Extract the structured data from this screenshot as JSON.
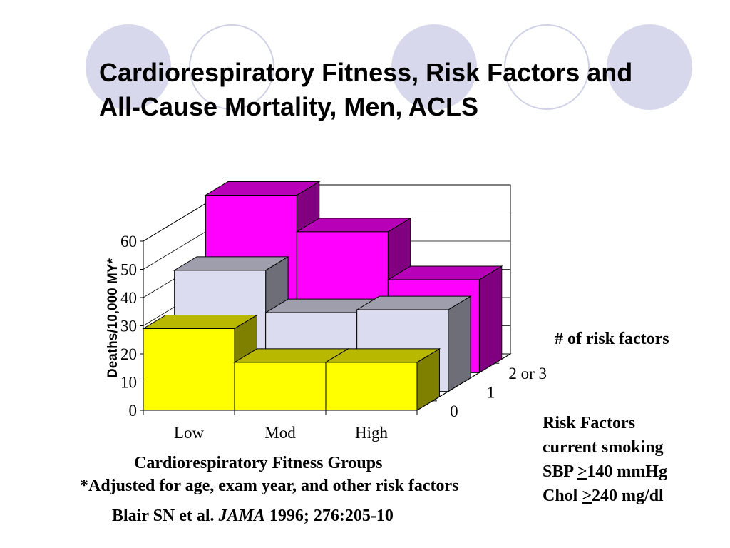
{
  "decor": {
    "circle_fill": "#d8d8ec",
    "circle_outline": "#d0d0e6"
  },
  "title": {
    "line1": "Cardiorespiratory Fitness, Risk Factors and",
    "line2": "All-Cause Mortality, Men, ACLS"
  },
  "footnote": "*Adjusted for age, exam year, and other risk factors",
  "citation": {
    "authors": "Blair SN et al. ",
    "journal": "JAMA",
    "ref": " 1996; 276:205-10"
  },
  "risk_factors": {
    "heading": "Risk Factors",
    "item1": "current smoking",
    "item2": {
      "prefix": "SBP ",
      "sym": ">",
      "rest": "140 mmHg"
    },
    "item3": {
      "prefix": "Chol ",
      "sym": ">",
      "rest": "240 mg/dl"
    }
  },
  "chart_data": {
    "type": "bar",
    "subtype": "3d-bar",
    "title": "",
    "xlabel": "Cardiorespiratory Fitness Groups",
    "ylabel": "Deaths/10,000 MY*",
    "zlabel": "# of risk factors",
    "categories": [
      "Low",
      "Mod",
      "High"
    ],
    "ylim": [
      0,
      60
    ],
    "yticks": [
      "0",
      "10",
      "20",
      "30",
      "40",
      "50",
      "60"
    ],
    "grid": true,
    "series": [
      {
        "name": "0",
        "values": [
          29,
          17,
          17
        ],
        "color": "#ffff00"
      },
      {
        "name": "1",
        "values": [
          43,
          28,
          29
        ],
        "color": "#dcdcf0"
      },
      {
        "name": "2 or 3",
        "values": [
          63,
          50,
          33
        ],
        "color": "#ff00ff"
      }
    ]
  }
}
